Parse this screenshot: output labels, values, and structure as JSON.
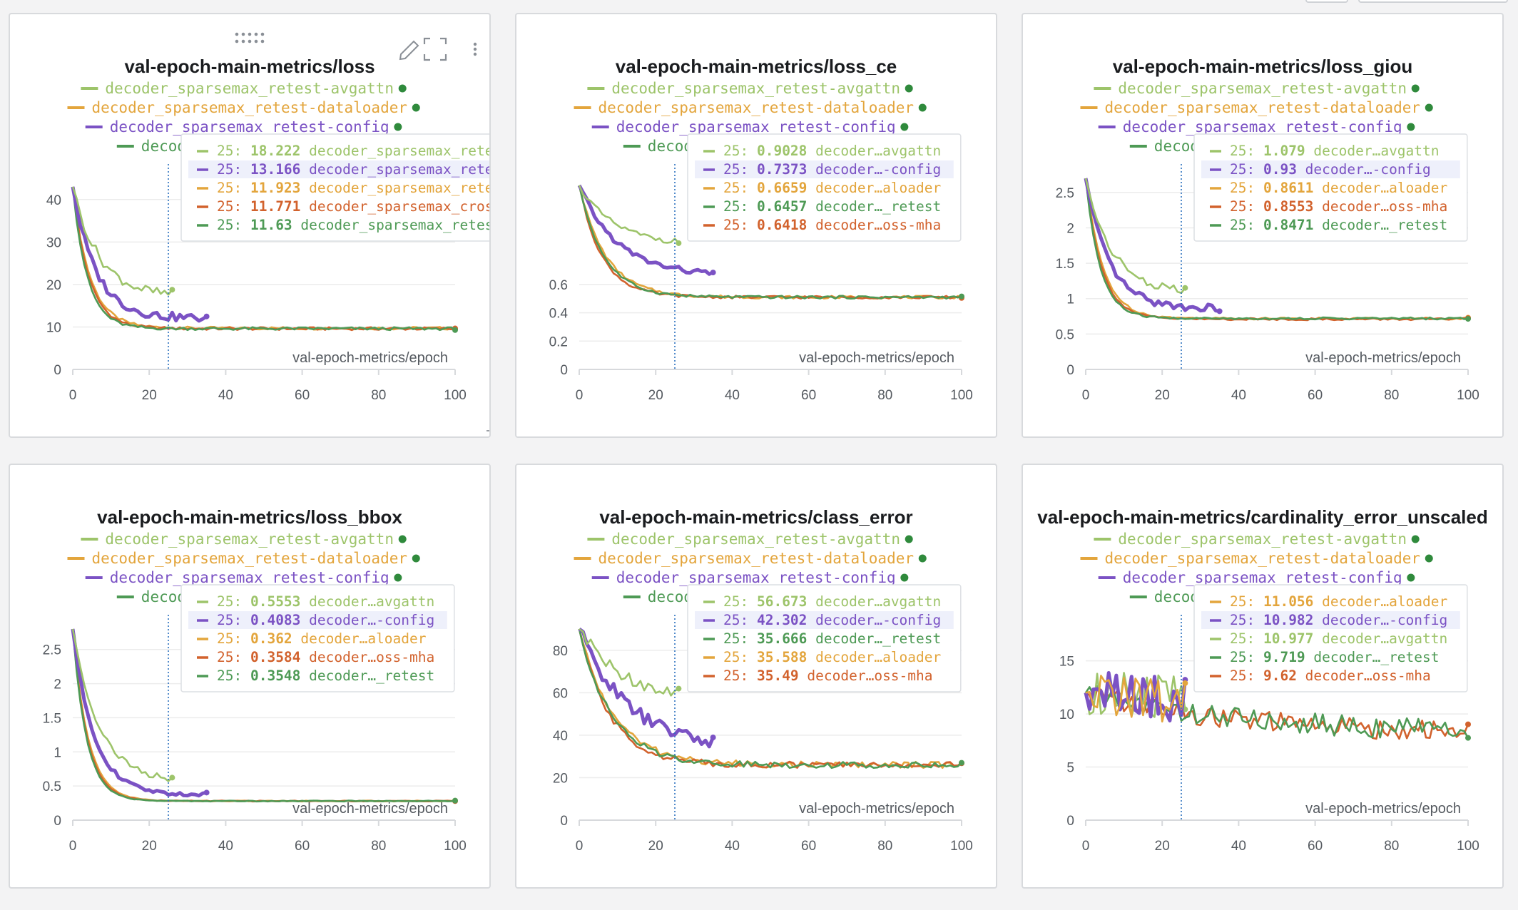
{
  "dashboard": {
    "series_styles": {
      "decoder_sparsemax_retest-avgattn": "#9dc46a",
      "decoder_sparsemax_retest-dataloader": "#e3a53c",
      "decoder_sparsemax_retest-config": "#7b52c4",
      "decoder_sparsemax_retest": "#4e9a55",
      "decoder_sparsemax_cross-mha": "#d2622d"
    },
    "legend_names": [
      "decoder_sparsemax_retest-avgattn",
      "decoder_sparsemax_retest-dataloader",
      "decoder_sparsemax_retest-config",
      "decoder_sparsemax_retest"
    ],
    "hover_step": "25",
    "x_axis_label": "val-epoch-metrics/epoch",
    "panel_toolbar": {
      "drag_handle_icon": "drag-dots-icon",
      "edit_icon": "pencil-icon",
      "fullscreen_icon": "expand-icon",
      "menu_icon": "kebab-menu-icon"
    }
  },
  "chart_data": [
    {
      "type": "line",
      "title": "val-epoch-main-metrics/loss",
      "xlabel": "val-epoch-metrics/epoch",
      "xlim": [
        0,
        100
      ],
      "ylim": [
        0,
        45
      ],
      "xticks": [
        0,
        20,
        40,
        60,
        80,
        100
      ],
      "yticks": [
        0,
        10,
        20,
        30,
        40
      ],
      "ytick_labels": [
        "0",
        "10",
        "20",
        "30",
        "40"
      ],
      "hover_x": 25,
      "tooltip": [
        {
          "step": "25:",
          "value": "18.222",
          "name": "decoder_sparsemax_retest-avgattn",
          "series": "decoder_sparsemax_retest-avgattn"
        },
        {
          "step": "25:",
          "value": "13.166",
          "name": "decoder_sparsemax_retest-config",
          "series": "decoder_sparsemax_retest-config",
          "highlight": true
        },
        {
          "step": "25:",
          "value": "11.923",
          "name": "decoder_sparsemax_retest-dataloader",
          "series": "decoder_sparsemax_retest-dataloader"
        },
        {
          "step": "25:",
          "value": "11.771",
          "name": "decoder_sparsemax_cross-mha",
          "series": "decoder_sparsemax_cross-mha"
        },
        {
          "step": "25:",
          "value": "11.63",
          "name": "decoder_sparsemax_retest",
          "series": "decoder_sparsemax_retest"
        }
      ],
      "series": [
        {
          "name": "decoder_sparsemax_retest-avgattn",
          "x_end": 26,
          "start": 43,
          "end": 17,
          "decay": 7,
          "noise": 1.2
        },
        {
          "name": "decoder_sparsemax_retest-config",
          "x_end": 35,
          "start": 43,
          "end": 12,
          "decay": 6,
          "noise": 1.0,
          "bold": true
        },
        {
          "name": "decoder_sparsemax_retest-dataloader",
          "x_end": 100,
          "start": 43,
          "end": 9.7,
          "decay": 4.5,
          "noise": 0.35
        },
        {
          "name": "decoder_sparsemax_cross-mha",
          "x_end": 100,
          "start": 43,
          "end": 9.6,
          "decay": 4.2,
          "noise": 0.35
        },
        {
          "name": "decoder_sparsemax_retest",
          "x_end": 100,
          "start": 43,
          "end": 9.6,
          "decay": 3.8,
          "noise": 0.35
        }
      ]
    },
    {
      "type": "line",
      "title": "val-epoch-main-metrics/loss_ce",
      "xlabel": "val-epoch-metrics/epoch",
      "xlim": [
        0,
        100
      ],
      "ylim": [
        0,
        1.35
      ],
      "xticks": [
        0,
        20,
        40,
        60,
        80,
        100
      ],
      "yticks": [
        0,
        0.2,
        0.4,
        0.6
      ],
      "ytick_labels": [
        "0",
        "0.2",
        "0.4",
        "0.6"
      ],
      "hover_x": 25,
      "tooltip": [
        {
          "step": "25:",
          "value": "0.9028",
          "name": "decoder…avgattn",
          "series": "decoder_sparsemax_retest-avgattn"
        },
        {
          "step": "25:",
          "value": "0.7373",
          "name": "decoder…-config",
          "series": "decoder_sparsemax_retest-config",
          "highlight": true
        },
        {
          "step": "25:",
          "value": "0.6659",
          "name": "decoder…aloader",
          "series": "decoder_sparsemax_retest-dataloader"
        },
        {
          "step": "25:",
          "value": "0.6457",
          "name": "decoder…_retest",
          "series": "decoder_sparsemax_retest"
        },
        {
          "step": "25:",
          "value": "0.6418",
          "name": "decoder…oss-mha",
          "series": "decoder_sparsemax_cross-mha"
        }
      ],
      "series": [
        {
          "name": "decoder_sparsemax_retest-avgattn",
          "x_end": 26,
          "start": 1.3,
          "end": 0.88,
          "decay": 9,
          "noise": 0.02
        },
        {
          "name": "decoder_sparsemax_retest-config",
          "x_end": 35,
          "start": 1.3,
          "end": 0.66,
          "decay": 10,
          "noise": 0.02,
          "bold": true
        },
        {
          "name": "decoder_sparsemax_retest-dataloader",
          "x_end": 100,
          "start": 1.3,
          "end": 0.51,
          "decay": 7,
          "noise": 0.01
        },
        {
          "name": "decoder_sparsemax_cross-mha",
          "x_end": 100,
          "start": 1.3,
          "end": 0.51,
          "decay": 6,
          "noise": 0.01
        },
        {
          "name": "decoder_sparsemax_retest",
          "x_end": 100,
          "start": 1.3,
          "end": 0.51,
          "decay": 6.5,
          "noise": 0.01
        }
      ]
    },
    {
      "type": "line",
      "title": "val-epoch-main-metrics/loss_giou",
      "xlabel": "val-epoch-metrics/epoch",
      "xlim": [
        0,
        100
      ],
      "ylim": [
        0,
        2.7
      ],
      "xticks": [
        0,
        20,
        40,
        60,
        80,
        100
      ],
      "yticks": [
        0,
        0.5,
        1,
        1.5,
        2,
        2.5
      ],
      "ytick_labels": [
        "0",
        "0.5",
        "1",
        "1.5",
        "2",
        "2.5"
      ],
      "hover_x": 25,
      "tooltip": [
        {
          "step": "25:",
          "value": "1.079",
          "name": "decoder…avgattn",
          "series": "decoder_sparsemax_retest-avgattn"
        },
        {
          "step": "25:",
          "value": "0.93",
          "name": "decoder…-config",
          "series": "decoder_sparsemax_retest-config",
          "highlight": true
        },
        {
          "step": "25:",
          "value": "0.8611",
          "name": "decoder…aloader",
          "series": "decoder_sparsemax_retest-dataloader"
        },
        {
          "step": "25:",
          "value": "0.8553",
          "name": "decoder…oss-mha",
          "series": "decoder_sparsemax_cross-mha"
        },
        {
          "step": "25:",
          "value": "0.8471",
          "name": "decoder…_retest",
          "series": "decoder_sparsemax_retest"
        }
      ],
      "series": [
        {
          "name": "decoder_sparsemax_retest-avgattn",
          "x_end": 26,
          "start": 2.7,
          "end": 1.07,
          "decay": 7,
          "noise": 0.06
        },
        {
          "name": "decoder_sparsemax_retest-config",
          "x_end": 35,
          "start": 2.7,
          "end": 0.86,
          "decay": 6,
          "noise": 0.05,
          "bold": true
        },
        {
          "name": "decoder_sparsemax_retest-dataloader",
          "x_end": 100,
          "start": 2.7,
          "end": 0.72,
          "decay": 4.5,
          "noise": 0.015
        },
        {
          "name": "decoder_sparsemax_cross-mha",
          "x_end": 100,
          "start": 2.7,
          "end": 0.71,
          "decay": 4.2,
          "noise": 0.015
        },
        {
          "name": "decoder_sparsemax_retest",
          "x_end": 100,
          "start": 2.7,
          "end": 0.72,
          "decay": 3.8,
          "noise": 0.015
        }
      ]
    },
    {
      "type": "line",
      "title": "val-epoch-main-metrics/loss_bbox",
      "xlabel": "val-epoch-metrics/epoch",
      "xlim": [
        0,
        100
      ],
      "ylim": [
        0,
        2.8
      ],
      "xticks": [
        0,
        20,
        40,
        60,
        80,
        100
      ],
      "yticks": [
        0,
        0.5,
        1,
        1.5,
        2,
        2.5
      ],
      "ytick_labels": [
        "0",
        "0.5",
        "1",
        "1.5",
        "2",
        "2.5"
      ],
      "hover_x": 25,
      "tooltip": [
        {
          "step": "25:",
          "value": "0.5553",
          "name": "decoder…avgattn",
          "series": "decoder_sparsemax_retest-avgattn"
        },
        {
          "step": "25:",
          "value": "0.4083",
          "name": "decoder…-config",
          "series": "decoder_sparsemax_retest-config",
          "highlight": true
        },
        {
          "step": "25:",
          "value": "0.362",
          "name": "decoder…aloader",
          "series": "decoder_sparsemax_retest-dataloader"
        },
        {
          "step": "25:",
          "value": "0.3584",
          "name": "decoder…oss-mha",
          "series": "decoder_sparsemax_cross-mha"
        },
        {
          "step": "25:",
          "value": "0.3548",
          "name": "decoder…_retest",
          "series": "decoder_sparsemax_retest"
        }
      ],
      "series": [
        {
          "name": "decoder_sparsemax_retest-avgattn",
          "x_end": 26,
          "start": 2.8,
          "end": 0.54,
          "decay": 7,
          "noise": 0.05
        },
        {
          "name": "decoder_sparsemax_retest-config",
          "x_end": 35,
          "start": 2.8,
          "end": 0.37,
          "decay": 5.5,
          "noise": 0.03,
          "bold": true
        },
        {
          "name": "decoder_sparsemax_retest-dataloader",
          "x_end": 100,
          "start": 2.8,
          "end": 0.28,
          "decay": 4,
          "noise": 0.006
        },
        {
          "name": "decoder_sparsemax_cross-mha",
          "x_end": 100,
          "start": 2.8,
          "end": 0.28,
          "decay": 3.8,
          "noise": 0.006
        },
        {
          "name": "decoder_sparsemax_retest",
          "x_end": 100,
          "start": 2.8,
          "end": 0.28,
          "decay": 3.6,
          "noise": 0.006
        }
      ]
    },
    {
      "type": "line",
      "title": "val-epoch-main-metrics/class_error",
      "xlabel": "val-epoch-metrics/epoch",
      "xlim": [
        0,
        100
      ],
      "ylim": [
        0,
        90
      ],
      "xticks": [
        0,
        20,
        40,
        60,
        80,
        100
      ],
      "yticks": [
        0,
        20,
        40,
        60,
        80
      ],
      "ytick_labels": [
        "0",
        "20",
        "40",
        "60",
        "80"
      ],
      "hover_x": 25,
      "tooltip": [
        {
          "step": "25:",
          "value": "56.673",
          "name": "decoder…avgattn",
          "series": "decoder_sparsemax_retest-avgattn"
        },
        {
          "step": "25:",
          "value": "42.302",
          "name": "decoder…-config",
          "series": "decoder_sparsemax_retest-config",
          "highlight": true
        },
        {
          "step": "25:",
          "value": "35.666",
          "name": "decoder…_retest",
          "series": "decoder_sparsemax_retest"
        },
        {
          "step": "25:",
          "value": "35.588",
          "name": "decoder…aloader",
          "series": "decoder_sparsemax_retest-dataloader"
        },
        {
          "step": "25:",
          "value": "35.49",
          "name": "decoder…oss-mha",
          "series": "decoder_sparsemax_cross-mha"
        }
      ],
      "series": [
        {
          "name": "decoder_sparsemax_retest-avgattn",
          "x_end": 26,
          "start": 90,
          "end": 55,
          "decay": 12,
          "noise": 3
        },
        {
          "name": "decoder_sparsemax_retest-config",
          "x_end": 35,
          "start": 90,
          "end": 33,
          "decay": 13,
          "noise": 3,
          "bold": true
        },
        {
          "name": "decoder_sparsemax_retest-dataloader",
          "x_end": 100,
          "start": 90,
          "end": 26,
          "decay": 9,
          "noise": 1.5
        },
        {
          "name": "decoder_sparsemax_cross-mha",
          "x_end": 100,
          "start": 90,
          "end": 26,
          "decay": 8,
          "noise": 1.5
        },
        {
          "name": "decoder_sparsemax_retest",
          "x_end": 100,
          "start": 90,
          "end": 26,
          "decay": 8.5,
          "noise": 1.5
        }
      ]
    },
    {
      "type": "line",
      "title": "val-epoch-main-metrics/cardinality_error_unscaled",
      "xlabel": "val-epoch-metrics/epoch",
      "xlim": [
        0,
        100
      ],
      "ylim": [
        0,
        18
      ],
      "xticks": [
        0,
        20,
        40,
        60,
        80,
        100
      ],
      "yticks": [
        0,
        5,
        10,
        15
      ],
      "ytick_labels": [
        "0",
        "5",
        "10",
        "15"
      ],
      "hover_x": 25,
      "tooltip": [
        {
          "step": "25:",
          "value": "11.056",
          "name": "decoder…aloader",
          "series": "decoder_sparsemax_retest-dataloader"
        },
        {
          "step": "25:",
          "value": "10.982",
          "name": "decoder…-config",
          "series": "decoder_sparsemax_retest-config",
          "highlight": true
        },
        {
          "step": "25:",
          "value": "10.977",
          "name": "decoder…avgattn",
          "series": "decoder_sparsemax_retest-avgattn"
        },
        {
          "step": "25:",
          "value": "9.719",
          "name": "decoder…_retest",
          "series": "decoder_sparsemax_retest"
        },
        {
          "step": "25:",
          "value": "9.62",
          "name": "decoder…oss-mha",
          "series": "decoder_sparsemax_cross-mha"
        }
      ],
      "series": [
        {
          "name": "decoder_sparsemax_retest-avgattn",
          "x_end": 26,
          "start": 12,
          "end": 11,
          "decay": 30,
          "noise": 2.2
        },
        {
          "name": "decoder_sparsemax_retest-config",
          "x_end": 26,
          "start": 12,
          "end": 11,
          "decay": 30,
          "noise": 2.2,
          "bold": true
        },
        {
          "name": "decoder_sparsemax_retest-dataloader",
          "x_end": 26,
          "start": 12,
          "end": 10.5,
          "decay": 30,
          "noise": 2.0
        },
        {
          "name": "decoder_sparsemax_cross-mha",
          "x_end": 100,
          "start": 12,
          "end": 8,
          "decay": 40,
          "noise": 1.0
        },
        {
          "name": "decoder_sparsemax_retest",
          "x_end": 100,
          "start": 12,
          "end": 8.2,
          "decay": 40,
          "noise": 1.0
        }
      ]
    }
  ]
}
